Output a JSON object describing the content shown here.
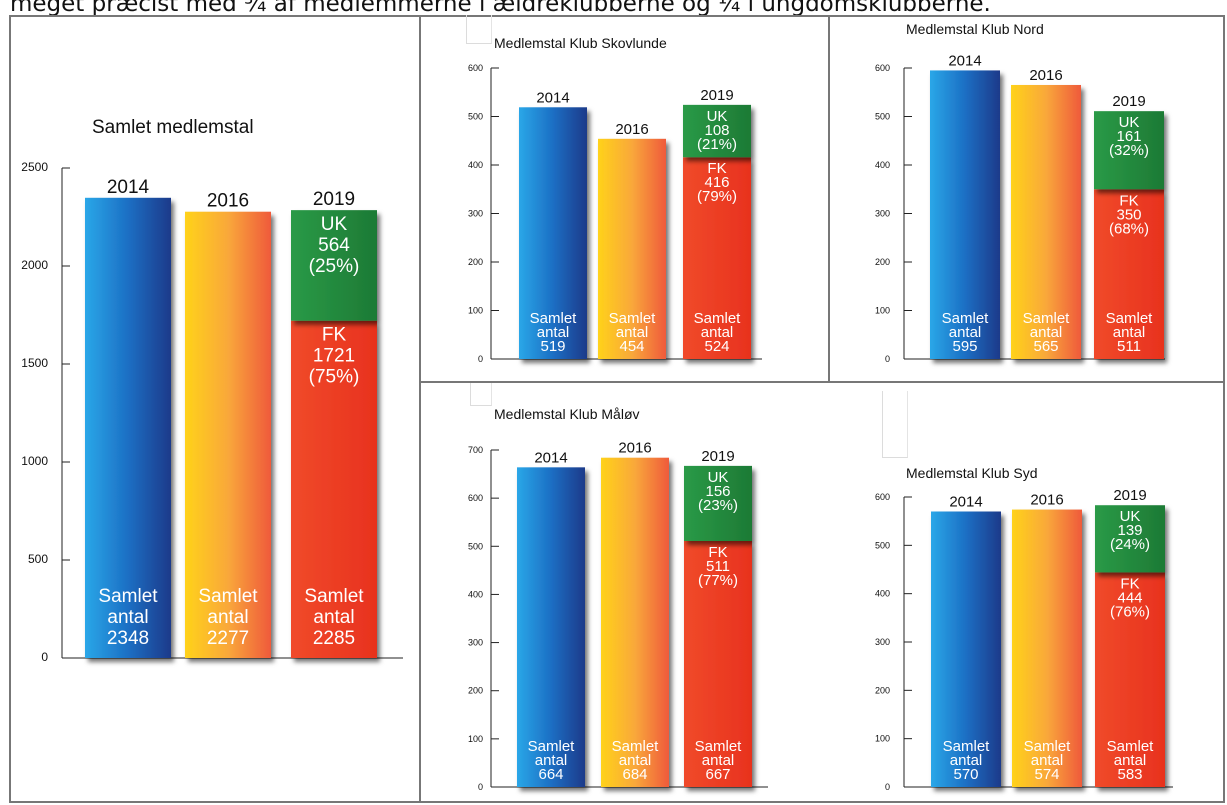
{
  "page": {
    "top_text": "meget præcist med ¾ af medlemmerne i ældreklubberne og ¼ i ungdomsklubberne."
  },
  "colors": {
    "bar_2014": [
      "#2aa7e8",
      "#1c6fc4",
      "#1f3a8a"
    ],
    "bar_2016": [
      "#ffd21a",
      "#f9a83a",
      "#ef5a3a"
    ],
    "bar_2019_fk": [
      "#f04a2a",
      "#e8321e"
    ],
    "bar_2019_uk": [
      "#2a9a47",
      "#1d7a35"
    ],
    "axis": "#222222"
  },
  "chart_data": [
    {
      "type": "bar",
      "title": "Samlet medlemstal",
      "categories": [
        "2014",
        "2016",
        "2019"
      ],
      "values": [
        2348,
        2277,
        2285
      ],
      "bar_labels": [
        [
          "Samlet",
          "antal",
          "2348"
        ],
        [
          "Samlet",
          "antal",
          "2277"
        ],
        [
          "Samlet",
          "antal",
          "2285"
        ]
      ],
      "stack_2019": {
        "fk": {
          "label": "FK",
          "value": 1721,
          "pct": "(75%)"
        },
        "uk": {
          "label": "UK",
          "value": 564,
          "pct": "(25%)"
        }
      },
      "yticks": [
        0,
        500,
        1000,
        1500,
        2000,
        2500
      ],
      "ylim": [
        0,
        2500
      ]
    },
    {
      "type": "bar",
      "title": "Medlemstal Klub Skovlunde",
      "categories": [
        "2014",
        "2016",
        "2019"
      ],
      "values": [
        519,
        454,
        524
      ],
      "bar_labels": [
        [
          "Samlet",
          "antal",
          "519"
        ],
        [
          "Samlet",
          "antal",
          "454"
        ],
        [
          "Samlet",
          "antal",
          "524"
        ]
      ],
      "stack_2019": {
        "fk": {
          "label": "FK",
          "value": 416,
          "pct": "(79%)"
        },
        "uk": {
          "label": "UK",
          "value": 108,
          "pct": "(21%)"
        }
      },
      "yticks": [
        0,
        100,
        200,
        300,
        400,
        500,
        600
      ],
      "ylim": [
        0,
        600
      ]
    },
    {
      "type": "bar",
      "title": "Medlemstal Klub Nord",
      "categories": [
        "2014",
        "2016",
        "2019"
      ],
      "values": [
        595,
        565,
        511
      ],
      "bar_labels": [
        [
          "Samlet",
          "antal",
          "595"
        ],
        [
          "Samlet",
          "antal",
          "565"
        ],
        [
          "Samlet",
          "antal",
          "511"
        ]
      ],
      "stack_2019": {
        "fk": {
          "label": "FK",
          "value": 350,
          "pct": "(68%)"
        },
        "uk": {
          "label": "UK",
          "value": 161,
          "pct": "(32%)"
        }
      },
      "yticks": [
        0,
        100,
        200,
        300,
        400,
        500,
        600
      ],
      "ylim": [
        0,
        600
      ]
    },
    {
      "type": "bar",
      "title": "Medlemstal Klub Måløv",
      "categories": [
        "2014",
        "2016",
        "2019"
      ],
      "values": [
        664,
        684,
        667
      ],
      "bar_labels": [
        [
          "Samlet",
          "antal",
          "664"
        ],
        [
          "Samlet",
          "antal",
          "684"
        ],
        [
          "Samlet",
          "antal",
          "667"
        ]
      ],
      "stack_2019": {
        "fk": {
          "label": "FK",
          "value": 511,
          "pct": "(77%)"
        },
        "uk": {
          "label": "UK",
          "value": 156,
          "pct": "(23%)"
        }
      },
      "yticks": [
        0,
        100,
        200,
        300,
        400,
        500,
        600,
        700
      ],
      "ylim": [
        0,
        700
      ]
    },
    {
      "type": "bar",
      "title": "Medlemstal Klub Syd",
      "categories": [
        "2014",
        "2016",
        "2019"
      ],
      "values": [
        570,
        574,
        583
      ],
      "bar_labels": [
        [
          "Samlet",
          "antal",
          "570"
        ],
        [
          "Samlet",
          "antal",
          "574"
        ],
        [
          "Samlet",
          "antal",
          "583"
        ]
      ],
      "stack_2019": {
        "fk": {
          "label": "FK",
          "value": 444,
          "pct": "(76%)"
        },
        "uk": {
          "label": "UK",
          "value": 139,
          "pct": "(24%)"
        }
      },
      "yticks": [
        0,
        100,
        200,
        300,
        400,
        500,
        600
      ],
      "ylim": [
        0,
        600
      ]
    }
  ]
}
